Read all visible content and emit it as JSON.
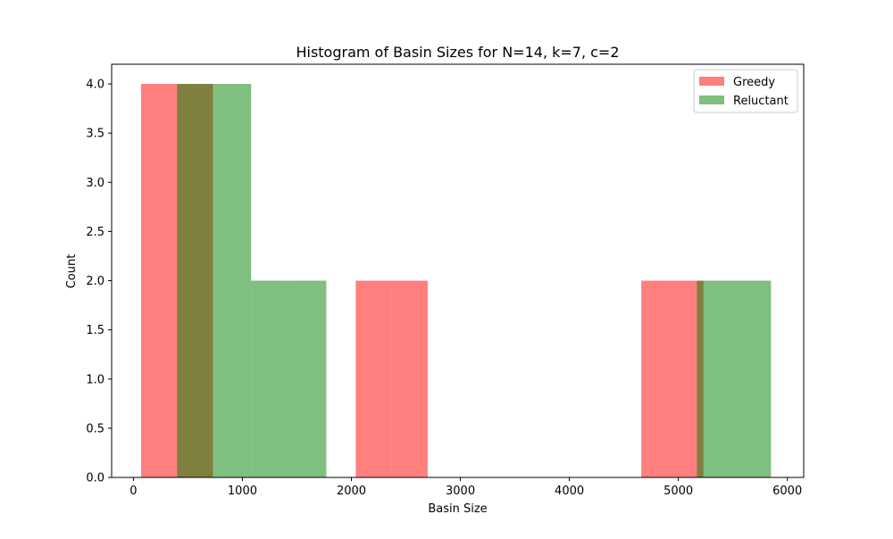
{
  "chart_data": {
    "type": "bar",
    "subtype": "histogram-overlay",
    "title": "Histogram of Basin Sizes for N=14, k=7, c=2",
    "xlabel": "Basin Size",
    "ylabel": "Count",
    "xlim": [
      -200,
      6150
    ],
    "ylim": [
      0,
      4.2
    ],
    "xticks": [
      0,
      1000,
      2000,
      3000,
      4000,
      5000,
      6000
    ],
    "yticks": [
      0.0,
      0.5,
      1.0,
      1.5,
      2.0,
      2.5,
      3.0,
      3.5,
      4.0
    ],
    "grid": false,
    "legend_position": "top-right",
    "series": [
      {
        "name": "Greedy",
        "color": "#ff0000",
        "alpha": 0.5,
        "bins": [
          {
            "x0": 70,
            "x1": 400,
            "count": 4
          },
          {
            "x0": 400,
            "x1": 730,
            "count": 4
          },
          {
            "x0": 730,
            "x1": 1060,
            "count": 0
          },
          {
            "x0": 1060,
            "x1": 1390,
            "count": 0
          },
          {
            "x0": 1390,
            "x1": 1720,
            "count": 0
          },
          {
            "x0": 1720,
            "x1": 2040,
            "count": 0
          },
          {
            "x0": 2040,
            "x1": 2370,
            "count": 2
          },
          {
            "x0": 2370,
            "x1": 2700,
            "count": 2
          },
          {
            "x0": 2700,
            "x1": 3030,
            "count": 0
          },
          {
            "x0": 3030,
            "x1": 3360,
            "count": 0
          },
          {
            "x0": 3360,
            "x1": 3680,
            "count": 0
          },
          {
            "x0": 3680,
            "x1": 4010,
            "count": 0
          },
          {
            "x0": 4010,
            "x1": 4340,
            "count": 0
          },
          {
            "x0": 4340,
            "x1": 4660,
            "count": 0
          },
          {
            "x0": 4660,
            "x1": 4990,
            "count": 2
          },
          {
            "x0": 4990,
            "x1": 5230,
            "count": 2
          }
        ]
      },
      {
        "name": "Reluctant",
        "color": "#008000",
        "alpha": 0.5,
        "bins": [
          {
            "x0": 400,
            "x1": 740,
            "count": 4
          },
          {
            "x0": 740,
            "x1": 1080,
            "count": 4
          },
          {
            "x0": 1080,
            "x1": 1420,
            "count": 2
          },
          {
            "x0": 1420,
            "x1": 1770,
            "count": 2
          },
          {
            "x0": 1770,
            "x1": 2110,
            "count": 0
          },
          {
            "x0": 2110,
            "x1": 2450,
            "count": 0
          },
          {
            "x0": 2450,
            "x1": 2790,
            "count": 0
          },
          {
            "x0": 2790,
            "x1": 3130,
            "count": 0
          },
          {
            "x0": 3130,
            "x1": 3470,
            "count": 0
          },
          {
            "x0": 3470,
            "x1": 3810,
            "count": 0
          },
          {
            "x0": 3810,
            "x1": 4150,
            "count": 0
          },
          {
            "x0": 4150,
            "x1": 4490,
            "count": 0
          },
          {
            "x0": 4490,
            "x1": 4830,
            "count": 0
          },
          {
            "x0": 4830,
            "x1": 5170,
            "count": 0
          },
          {
            "x0": 5170,
            "x1": 5510,
            "count": 2
          },
          {
            "x0": 5510,
            "x1": 5850,
            "count": 2
          }
        ]
      }
    ]
  }
}
